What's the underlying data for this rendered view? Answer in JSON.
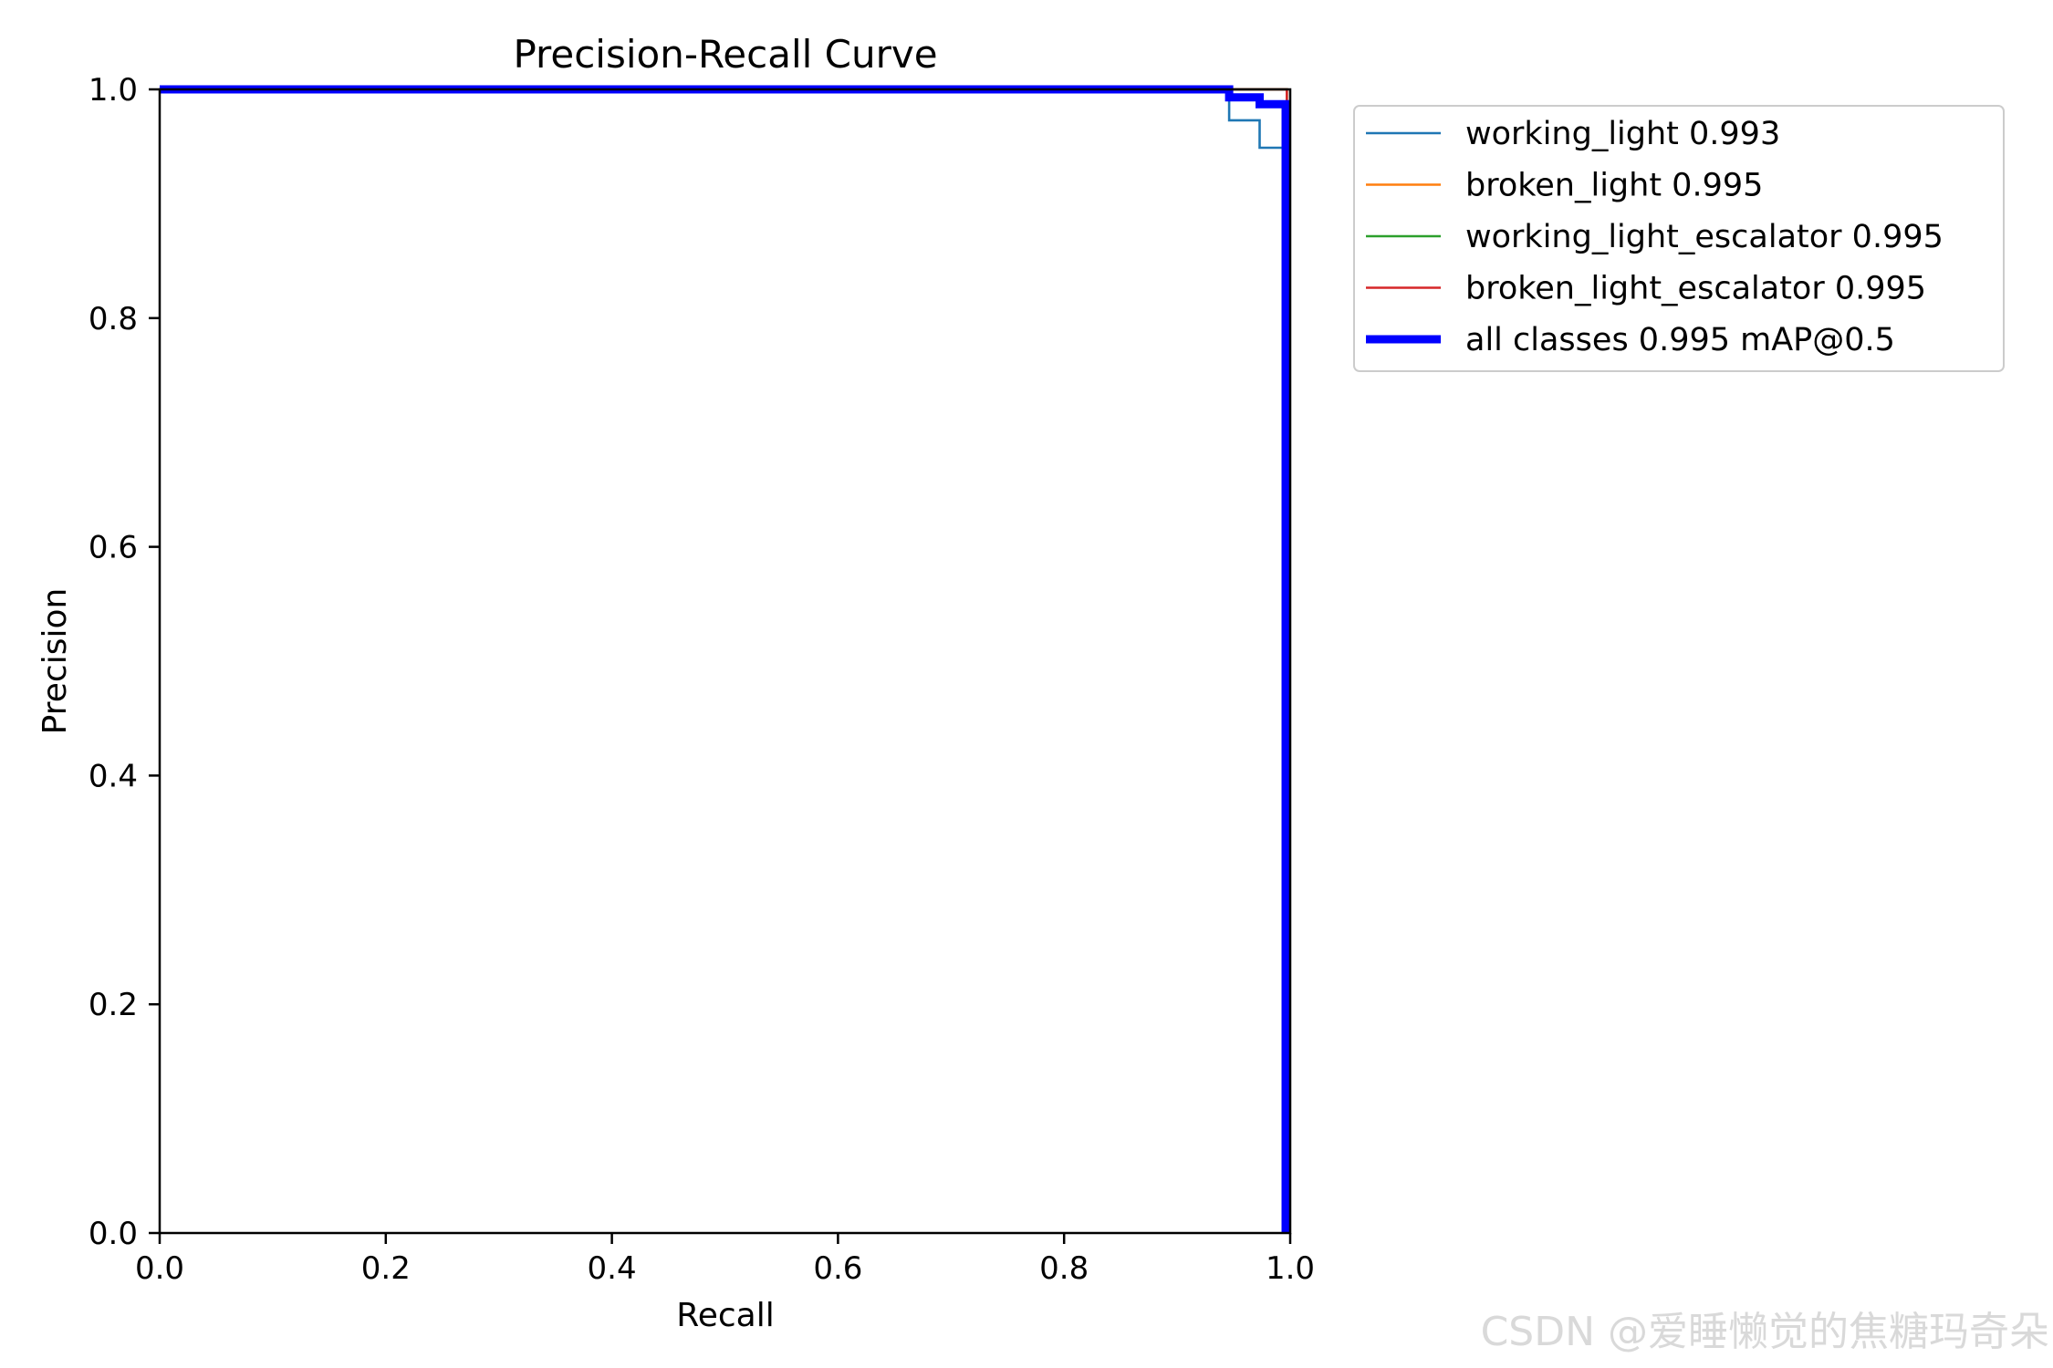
{
  "chart_data": {
    "type": "line",
    "title": "Precision-Recall Curve",
    "xlabel": "Recall",
    "ylabel": "Precision",
    "xlim": [
      0,
      1
    ],
    "ylim": [
      0,
      1
    ],
    "xticks": [
      "0.0",
      "0.2",
      "0.4",
      "0.6",
      "0.8",
      "1.0"
    ],
    "yticks": [
      "0.0",
      "0.2",
      "0.4",
      "0.6",
      "0.8",
      "1.0"
    ],
    "grid": false,
    "legend_position": "outside upper right",
    "series": [
      {
        "name": "working_light 0.993",
        "color": "#1f77b4",
        "line": "thin",
        "points": [
          [
            0,
            1.0
          ],
          [
            0.946,
            1.0
          ],
          [
            0.946,
            0.973
          ],
          [
            0.973,
            0.973
          ],
          [
            0.973,
            0.949
          ],
          [
            0.996,
            0.949
          ],
          [
            0.996,
            0.0
          ]
        ]
      },
      {
        "name": "broken_light 0.995",
        "color": "#ff7f0e",
        "line": "thin",
        "points": [
          [
            0,
            1.0
          ],
          [
            0.997,
            1.0
          ],
          [
            0.997,
            0.0
          ]
        ]
      },
      {
        "name": "working_light_escalator 0.995",
        "color": "#2ca02c",
        "line": "thin",
        "points": [
          [
            0,
            1.0
          ],
          [
            0.997,
            1.0
          ],
          [
            0.997,
            0.0
          ]
        ]
      },
      {
        "name": "broken_light_escalator 0.995",
        "color": "#d62728",
        "line": "thin",
        "points": [
          [
            0,
            1.0
          ],
          [
            0.997,
            1.0
          ],
          [
            0.997,
            0.0
          ]
        ]
      },
      {
        "name": "all classes 0.995 mAP@0.5",
        "color": "#0000ff",
        "line": "thick",
        "points": [
          [
            0,
            1.0
          ],
          [
            0.946,
            1.0
          ],
          [
            0.946,
            0.993
          ],
          [
            0.973,
            0.993
          ],
          [
            0.973,
            0.987
          ],
          [
            0.996,
            0.987
          ],
          [
            0.996,
            0.0
          ]
        ]
      }
    ]
  },
  "watermark": "CSDN @爱睡懒觉的焦糖玛奇朵"
}
